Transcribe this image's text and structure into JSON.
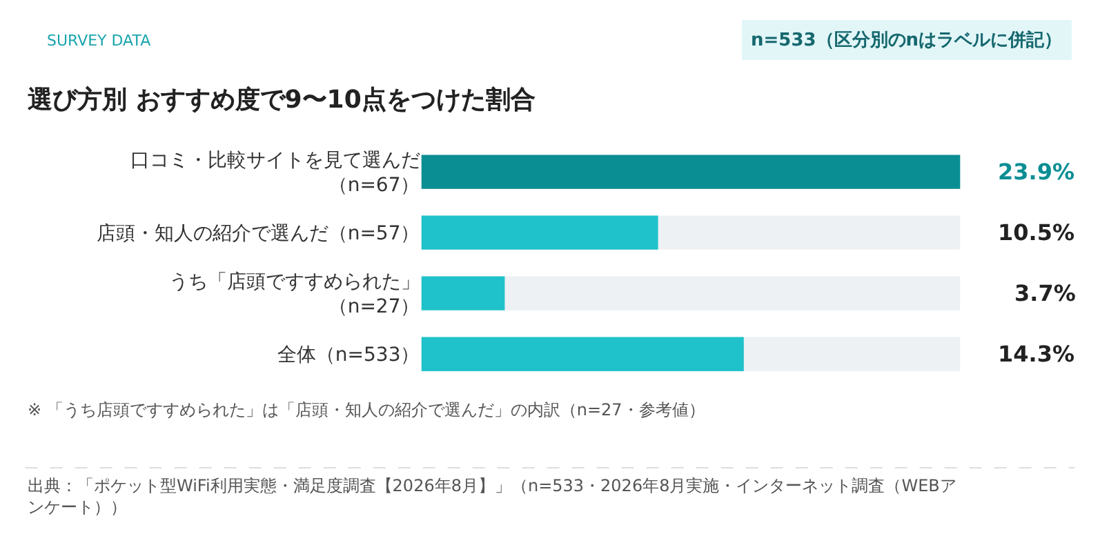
{
  "chart_data": {
    "type": "bar",
    "orientation": "horizontal",
    "title": "選び方別 おすすめ度で9〜10点をつけた割合",
    "categories": [
      "口コミ・比較サイトを見て選んだ（n=67）",
      "店頭・知人の紹介で選んだ（n=57）",
      "うち「店頭ですすめられた」（n=27）",
      "全体（n=533）"
    ],
    "values": [
      23.9,
      10.5,
      3.7,
      14.3
    ],
    "colors": [
      "#0a8e94",
      "#1fc2ca",
      "#1fc2ca",
      "#1fc2ca"
    ],
    "value_labels": [
      "23.9%",
      "10.5%",
      "3.7%",
      "14.3%"
    ],
    "xlim": [
      0,
      23.9
    ],
    "tick_labels": "y",
    "grid": false,
    "legend": false,
    "annotations": [
      "SURVEY DATA",
      "n=533（区分別のnはラベルに併記）",
      "※ 「うち店頭ですすめられた」は「店頭・知人の紹介で選んだ」の内訳（n=27・参考値）",
      "出典：「ポケット型WiFi利用実態・満足度調査【2026年8月】」（n=533・2026年8月実施・インターネット調査（WEBアンケート））"
    ]
  }
}
